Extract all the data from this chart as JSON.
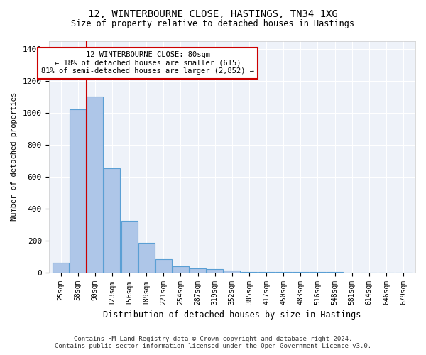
{
  "title1": "12, WINTERBOURNE CLOSE, HASTINGS, TN34 1XG",
  "title2": "Size of property relative to detached houses in Hastings",
  "xlabel": "Distribution of detached houses by size in Hastings",
  "ylabel": "Number of detached properties",
  "footer1": "Contains HM Land Registry data © Crown copyright and database right 2024.",
  "footer2": "Contains public sector information licensed under the Open Government Licence v3.0.",
  "bins": [
    "25sqm",
    "58sqm",
    "90sqm",
    "123sqm",
    "156sqm",
    "189sqm",
    "221sqm",
    "254sqm",
    "287sqm",
    "319sqm",
    "352sqm",
    "385sqm",
    "417sqm",
    "450sqm",
    "483sqm",
    "516sqm",
    "548sqm",
    "581sqm",
    "614sqm",
    "646sqm",
    "679sqm"
  ],
  "values": [
    60,
    1020,
    1100,
    650,
    325,
    185,
    85,
    40,
    25,
    20,
    12,
    5,
    3,
    2,
    1,
    1,
    1,
    0,
    0,
    0,
    0
  ],
  "bar_color": "#aec6e8",
  "bar_edge_color": "#5a9fd4",
  "red_line_x": 1.5,
  "annotation_text": "12 WINTERBOURNE CLOSE: 80sqm\n← 18% of detached houses are smaller (615)\n81% of semi-detached houses are larger (2,852) →",
  "ylim": [
    0,
    1450
  ],
  "yticks": [
    0,
    200,
    400,
    600,
    800,
    1000,
    1200,
    1400
  ],
  "bg_color": "#eef2f9",
  "grid_color": "#ffffff",
  "annotation_box_color": "#cc0000",
  "red_line_color": "#cc0000"
}
